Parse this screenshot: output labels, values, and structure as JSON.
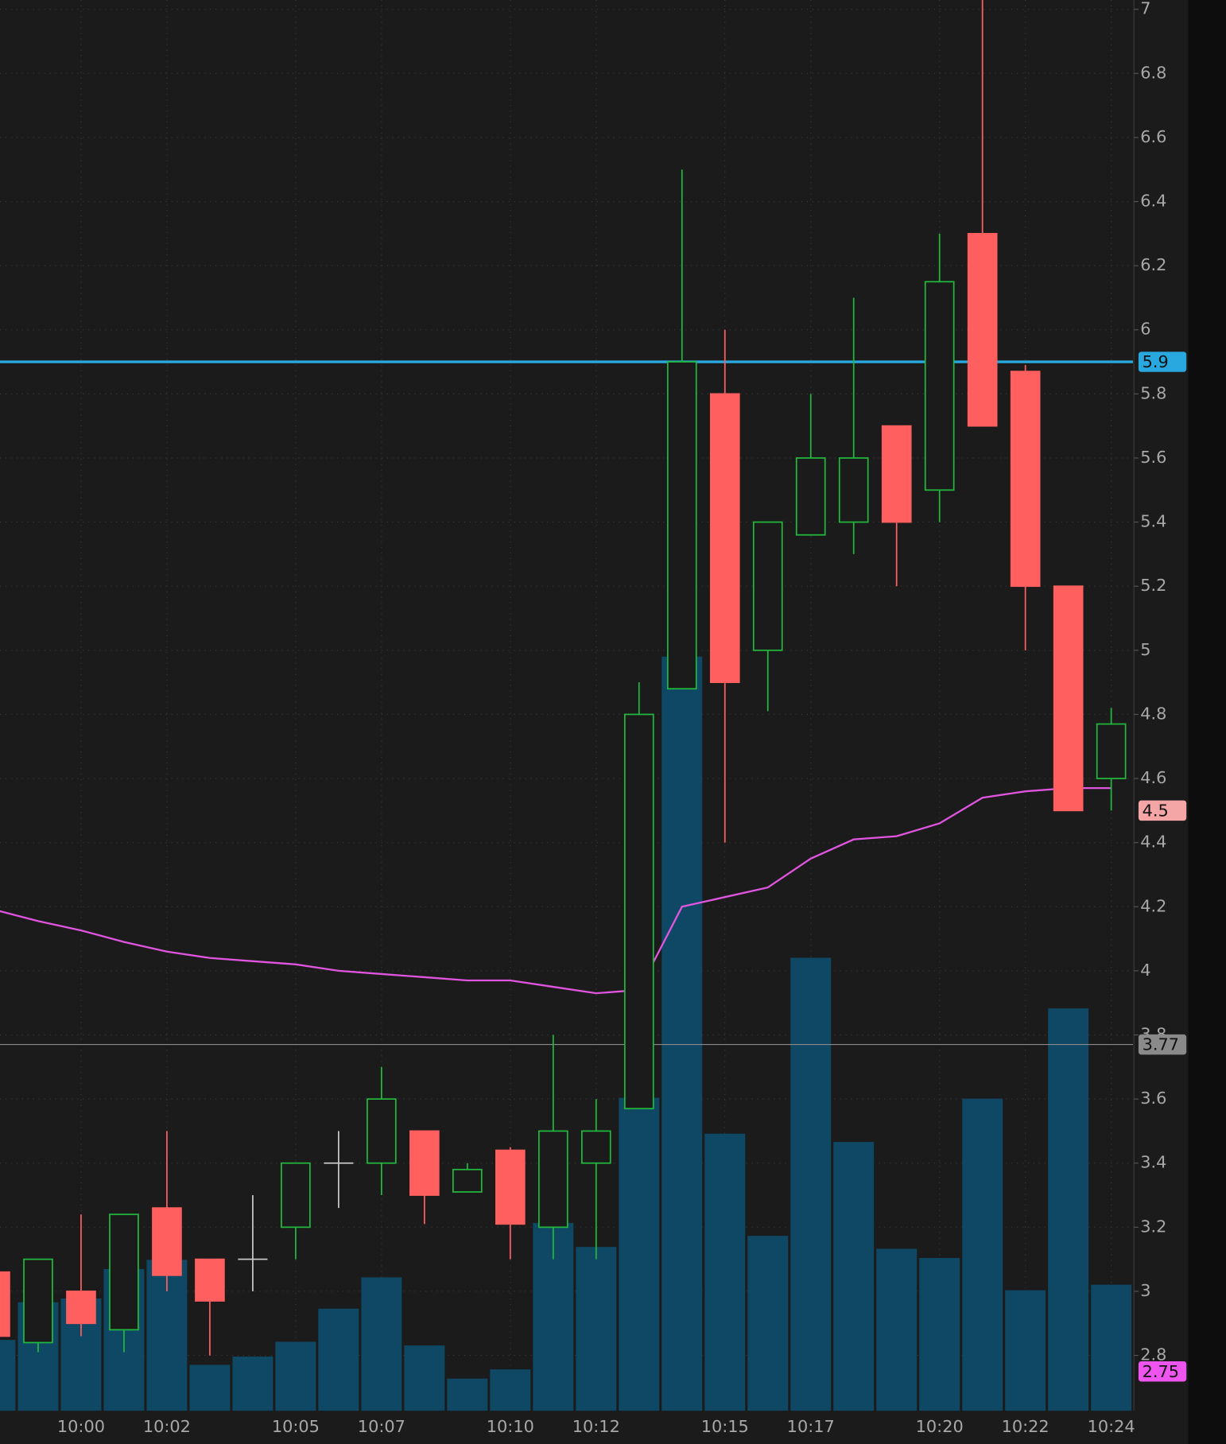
{
  "chart_data": {
    "type": "candlestick",
    "categories": [
      null,
      null,
      "10:00",
      null,
      "10:02",
      null,
      null,
      "10:05",
      null,
      "10:07",
      null,
      null,
      "10:10",
      null,
      "10:12",
      null,
      null,
      "10:15",
      null,
      "10:17",
      null,
      null,
      "10:20",
      null,
      "10:22",
      null,
      "10:24"
    ],
    "open": [
      3.06,
      2.84,
      3.0,
      2.88,
      3.26,
      3.1,
      3.1,
      3.2,
      3.4,
      3.4,
      3.5,
      3.31,
      3.44,
      3.2,
      3.4,
      3.57,
      4.88,
      5.8,
      5.0,
      5.36,
      5.4,
      5.7,
      5.5,
      6.3,
      5.87,
      5.2,
      4.6
    ],
    "high": [
      3.06,
      3.1,
      3.24,
      3.24,
      3.5,
      3.1,
      3.3,
      3.4,
      3.5,
      3.7,
      3.5,
      3.4,
      3.45,
      3.8,
      3.6,
      4.9,
      6.5,
      6.0,
      5.4,
      5.8,
      6.1,
      5.7,
      6.3,
      7.1,
      5.89,
      5.2,
      4.82
    ],
    "low": [
      2.86,
      2.81,
      2.86,
      2.81,
      3.0,
      2.8,
      3.0,
      3.1,
      3.26,
      3.3,
      3.21,
      3.31,
      3.1,
      3.1,
      3.1,
      3.57,
      4.88,
      4.4,
      4.81,
      5.36,
      5.3,
      5.2,
      5.4,
      5.7,
      5.0,
      4.5,
      4.5
    ],
    "close": [
      2.86,
      3.1,
      2.9,
      3.24,
      3.05,
      2.97,
      3.1,
      3.4,
      3.4,
      3.6,
      3.3,
      3.38,
      3.21,
      3.5,
      3.5,
      4.8,
      5.9,
      4.9,
      5.4,
      5.6,
      5.6,
      5.4,
      6.15,
      5.7,
      5.2,
      4.5,
      4.77
    ],
    "volume": [
      77,
      118,
      122,
      154,
      164,
      50,
      59,
      75,
      111,
      145,
      71,
      35,
      45,
      204,
      178,
      340,
      819,
      301,
      190,
      492,
      292,
      176,
      166,
      339,
      131,
      437,
      137
    ],
    "volume_ylim": [
      0,
      1532
    ],
    "moving_average": [
      4.19,
      4.155,
      4.126,
      4.09,
      4.06,
      4.04,
      4.03,
      4.02,
      4.0,
      3.99,
      3.98,
      3.97,
      3.97,
      3.95,
      3.93,
      3.94,
      4.2,
      4.23,
      4.26,
      4.35,
      4.41,
      4.42,
      4.46,
      4.54,
      4.56,
      4.57,
      4.57
    ],
    "ylim": [
      2.627,
      7.029
    ],
    "yticks": [
      2.8,
      3,
      3.2,
      3.4,
      3.6,
      3.8,
      4,
      4.2,
      4.4,
      4.6,
      4.8,
      5,
      5.2,
      5.4,
      5.6,
      5.8,
      6,
      6.2,
      6.4,
      6.6,
      6.8,
      7
    ],
    "price_lines": [
      {
        "value": 5.9,
        "color": "#29a8e0"
      },
      {
        "value": 3.77,
        "color": "#8a8a8a"
      }
    ],
    "markers": [
      {
        "value": 4.5,
        "color": "#f4a6a6"
      },
      {
        "value": 2.75,
        "color": "#ee55ee"
      }
    ],
    "grid": true
  }
}
